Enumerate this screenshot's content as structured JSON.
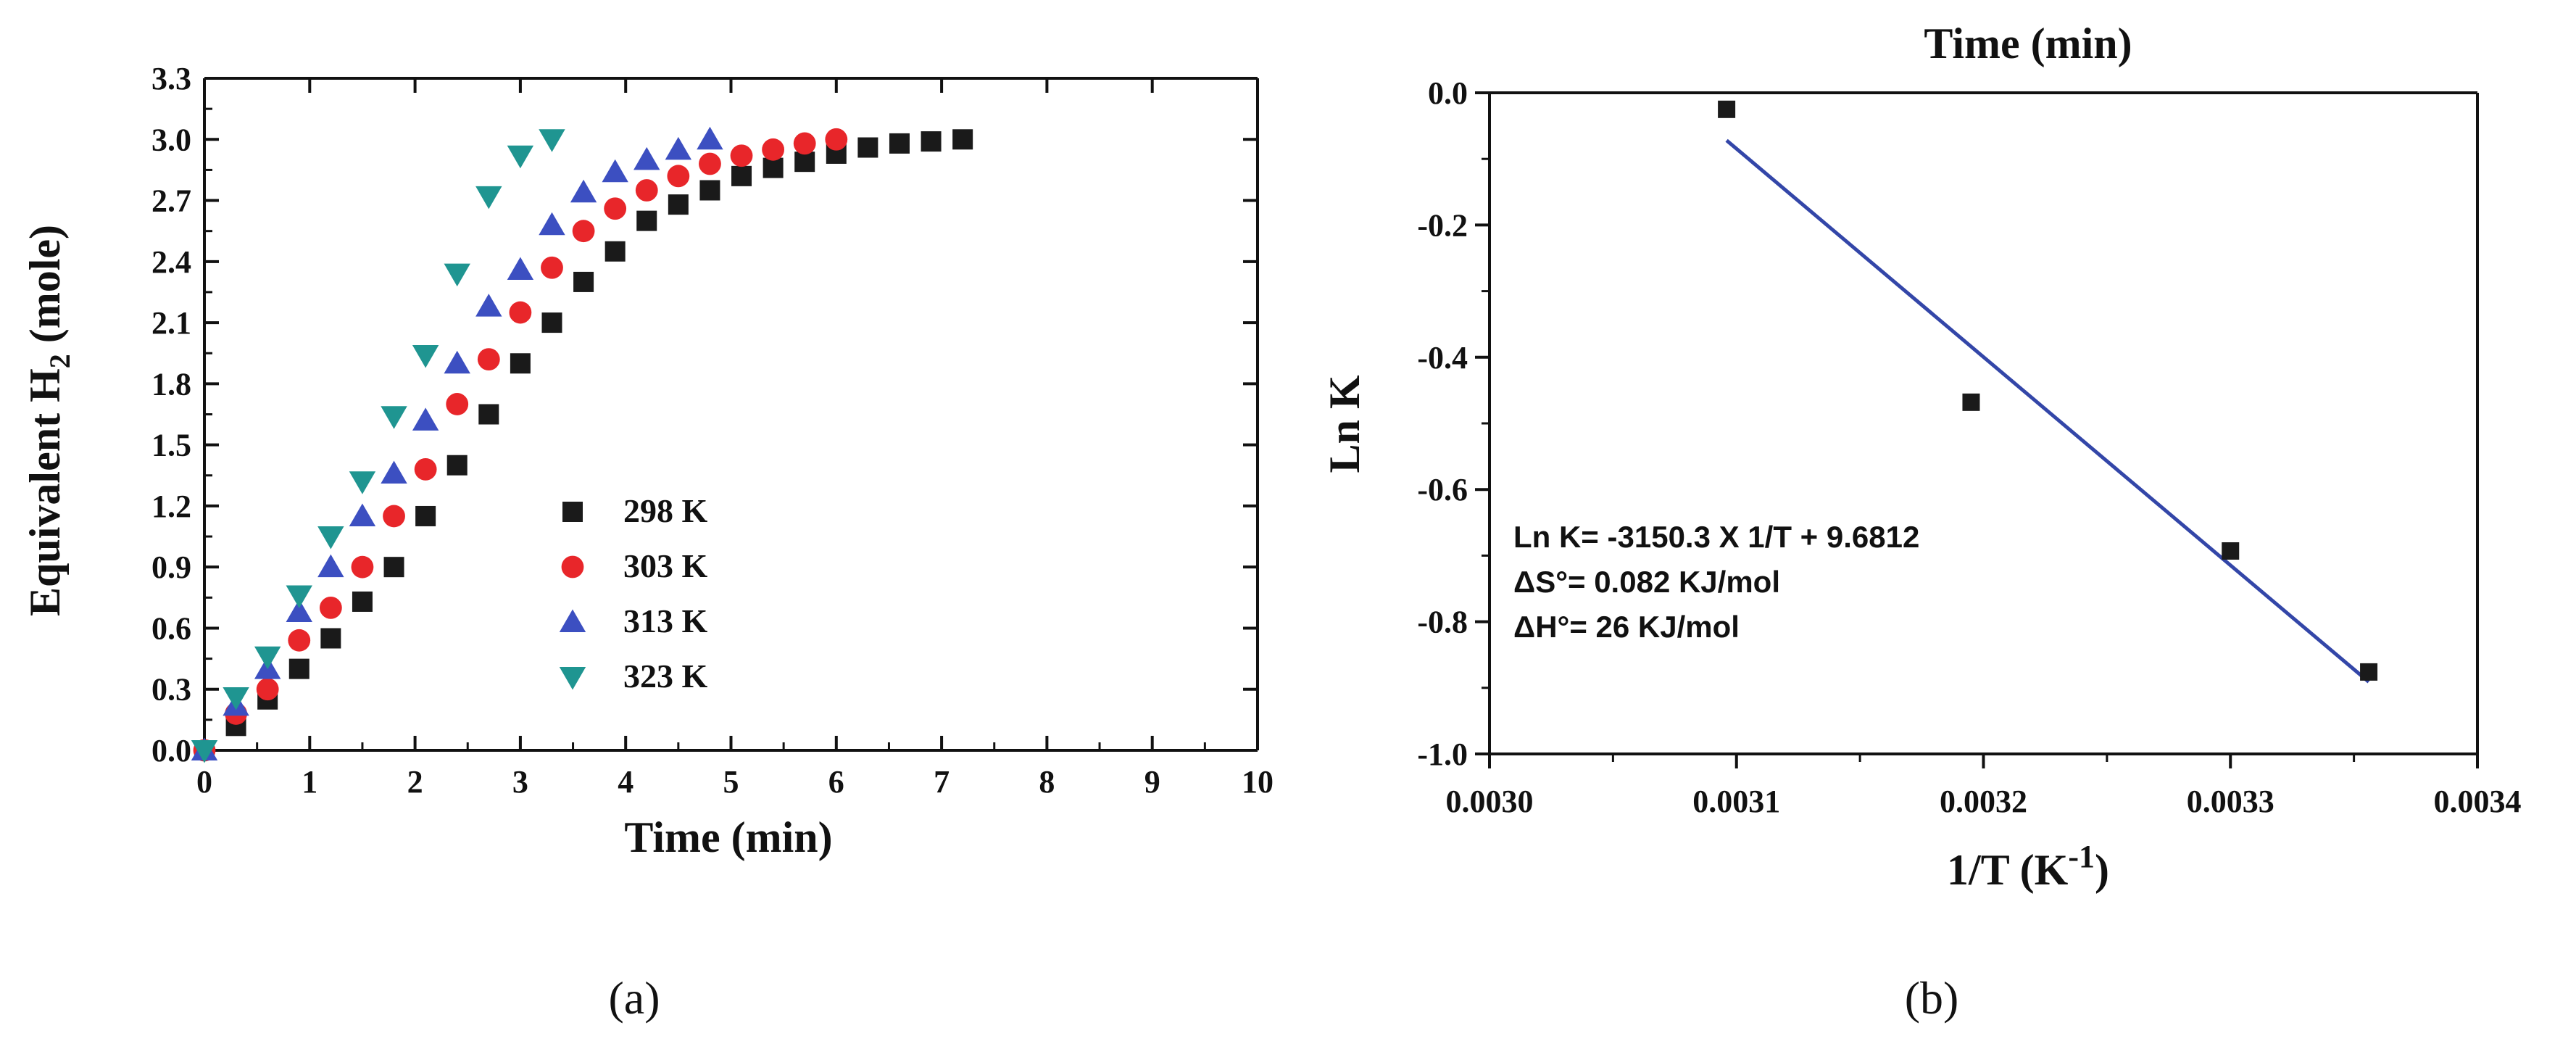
{
  "chart_data": [
    {
      "panel": "(a)",
      "type": "scatter",
      "title": "",
      "xlabel": "Time (min)",
      "ylabel_main": "Equivalent H",
      "ylabel_sub": "2",
      "ylabel_tail": " (mole)",
      "xlim": [
        0,
        10
      ],
      "ylim": [
        0,
        3.3
      ],
      "xticks": [
        "0",
        "1",
        "2",
        "3",
        "4",
        "5",
        "6",
        "7",
        "8",
        "9",
        "10"
      ],
      "yticks": [
        "0.0",
        "0.3",
        "0.6",
        "0.9",
        "1.2",
        "1.5",
        "1.8",
        "2.1",
        "2.4",
        "2.7",
        "3.0",
        "3.3"
      ],
      "legend_position": "center",
      "series": [
        {
          "name": "298 K",
          "marker": "square",
          "color": "#1a1a1a",
          "x": [
            0,
            0.3,
            0.6,
            0.9,
            1.2,
            1.5,
            1.8,
            2.1,
            2.4,
            2.7,
            3.0,
            3.3,
            3.6,
            3.9,
            4.2,
            4.5,
            4.8,
            5.1,
            5.4,
            5.7,
            6.0,
            6.3,
            6.6,
            6.9,
            7.2
          ],
          "y": [
            0,
            0.12,
            0.25,
            0.4,
            0.55,
            0.73,
            0.9,
            1.15,
            1.4,
            1.65,
            1.9,
            2.1,
            2.3,
            2.45,
            2.6,
            2.68,
            2.75,
            2.82,
            2.86,
            2.89,
            2.93,
            2.96,
            2.98,
            2.99,
            3.0
          ]
        },
        {
          "name": "303 K",
          "marker": "circle",
          "color": "#e8262a",
          "x": [
            0,
            0.3,
            0.6,
            0.9,
            1.2,
            1.5,
            1.8,
            2.1,
            2.4,
            2.7,
            3.0,
            3.3,
            3.6,
            3.9,
            4.2,
            4.5,
            4.8,
            5.1,
            5.4,
            5.7,
            6.0
          ],
          "y": [
            0,
            0.18,
            0.3,
            0.54,
            0.7,
            0.9,
            1.15,
            1.38,
            1.7,
            1.92,
            2.15,
            2.37,
            2.55,
            2.66,
            2.75,
            2.82,
            2.88,
            2.92,
            2.95,
            2.98,
            3.0
          ]
        },
        {
          "name": "313 K",
          "marker": "triangle-up",
          "color": "#3c4fc1",
          "x": [
            0,
            0.3,
            0.6,
            0.9,
            1.2,
            1.5,
            1.8,
            2.1,
            2.4,
            2.7,
            3.0,
            3.3,
            3.6,
            3.9,
            4.2,
            4.5,
            4.8
          ],
          "y": [
            0,
            0.22,
            0.4,
            0.68,
            0.9,
            1.15,
            1.36,
            1.62,
            1.9,
            2.18,
            2.36,
            2.58,
            2.74,
            2.84,
            2.9,
            2.95,
            3.0
          ]
        },
        {
          "name": "323 K",
          "marker": "triangle-down",
          "color": "#1f9591",
          "x": [
            0,
            0.3,
            0.6,
            0.9,
            1.2,
            1.5,
            1.8,
            2.1,
            2.4,
            2.7,
            3.0,
            3.3
          ],
          "y": [
            0,
            0.26,
            0.46,
            0.76,
            1.05,
            1.32,
            1.64,
            1.94,
            2.34,
            2.72,
            2.92,
            3.0
          ]
        }
      ]
    },
    {
      "panel": "(b)",
      "type": "scatter",
      "title": "Time (min)",
      "xlabel_main": "1/T (K",
      "xlabel_sup": "-1",
      "xlabel_tail": ")",
      "ylabel": "Ln K",
      "xlim": [
        0.003,
        0.0034
      ],
      "ylim": [
        -1.0,
        0.0
      ],
      "xticks": [
        "0.0030",
        "0.0031",
        "0.0032",
        "0.0033",
        "0.0034"
      ],
      "yticks": [
        "0.0",
        "-0.2",
        "-0.4",
        "-0.6",
        "-0.8",
        "-1.0"
      ],
      "points": {
        "x": [
          0.003096,
          0.003195,
          0.0033,
          0.003356
        ],
        "y": [
          -0.025,
          -0.468,
          -0.693,
          -0.876
        ],
        "color": "#1a1a1a",
        "marker": "square"
      },
      "fit_line": {
        "x": [
          0.003096,
          0.003356
        ],
        "y": [
          -0.072,
          -0.891
        ],
        "color": "#3346a8"
      },
      "annotations": [
        "Ln K= -3150.3 X 1/T + 9.6812",
        "ΔS°= 0.082 KJ/mol",
        "ΔH°= 26 KJ/mol"
      ]
    }
  ]
}
